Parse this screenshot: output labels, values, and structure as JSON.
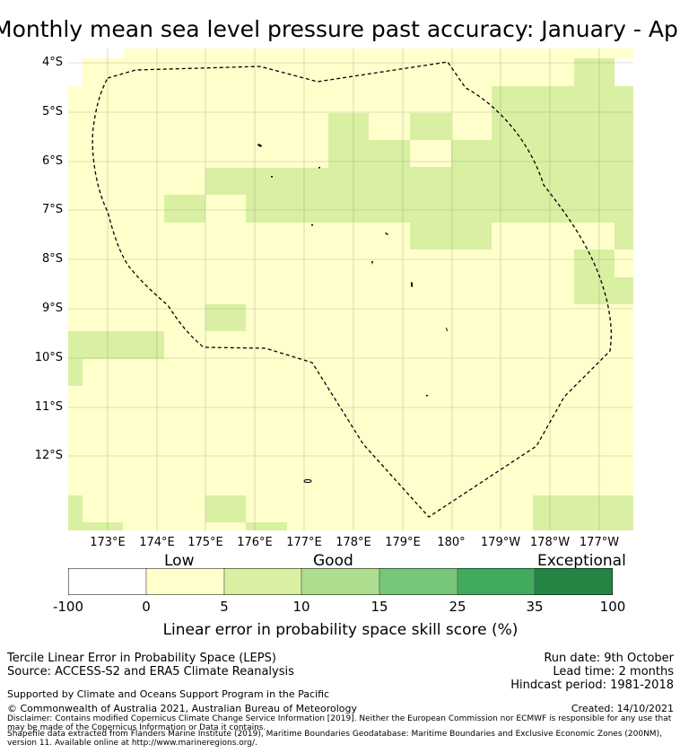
{
  "title": "Monthly mean sea level pressure past accuracy: January - April",
  "map": {
    "lat_labels": [
      "4°S",
      "5°S",
      "6°S",
      "7°S",
      "8°S",
      "9°S",
      "10°S",
      "11°S",
      "12°S"
    ],
    "lon_labels": [
      "173°E",
      "174°E",
      "175°E",
      "176°E",
      "177°E",
      "178°E",
      "179°E",
      "180°",
      "179°W",
      "178°W",
      "177°W"
    ],
    "colors": {
      "low": "#ffffcc",
      "good1": "#d9f0a3",
      "good2": "#addd8e",
      "good3": "#78c679",
      "good4": "#41ab5d",
      "exc": "#238443",
      "white": "#ffffff"
    }
  },
  "colorbar": {
    "categories": [
      "Low",
      "Good",
      "Exceptional"
    ],
    "ticks": [
      "-100",
      "0",
      "5",
      "10",
      "15",
      "25",
      "35",
      "100"
    ],
    "label": "Linear error in probability space skill score (%)"
  },
  "footer": {
    "product": "Tercile Linear Error in Probability Space (LEPS)",
    "source": "Source: ACCESS-S2 and ERA5 Climate Reanalysis",
    "run_date": "Run date: 9th October",
    "lead_time": "Lead time: 2 months",
    "hindcast": "Hindcast period: 1981-2018",
    "support": "Supported by Climate and Oceans Support Program in the Pacific",
    "copyright": "© Commonwealth of Australia 2021, Australian Bureau of Meteorology",
    "created": "Created: 14/10/2021",
    "disclaimer": "Disclaimer: Contains modified Copernicus Climate Change Service Information [2019]. Neither the European Commission nor ECMWF is responsible for any use that may be made of the Copernicus Information or Data it contains.",
    "shapefile": "Shapefile data extracted from Flanders Marine Institute (2019), Maritime Boundaries Geodatabase: Maritime Boundaries and Exclusive Economic Zones (200NM), version 11. Available online at http://www.marineregions.org/."
  }
}
